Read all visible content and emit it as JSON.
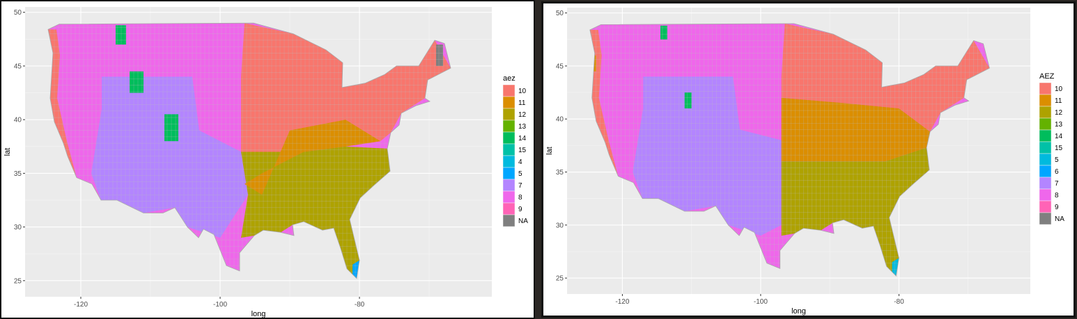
{
  "chart_data": [
    {
      "type": "choropleth-map",
      "xlabel": "long",
      "ylabel": "lat",
      "xlim": [
        -128,
        -61
      ],
      "ylim": [
        23.5,
        50.5
      ],
      "xticks": [
        -120,
        -100,
        -80
      ],
      "yticks": [
        25,
        30,
        35,
        40,
        45,
        50
      ],
      "grid": true,
      "legend_position": "right",
      "legend": {
        "title": "aez",
        "entries": [
          {
            "label": "10",
            "color": "#F8766D"
          },
          {
            "label": "11",
            "color": "#DB8E00"
          },
          {
            "label": "12",
            "color": "#AEA200"
          },
          {
            "label": "13",
            "color": "#64B200"
          },
          {
            "label": "14",
            "color": "#00BD5C"
          },
          {
            "label": "15",
            "color": "#00C1A7"
          },
          {
            "label": "4",
            "color": "#00BADE"
          },
          {
            "label": "5",
            "color": "#00A6FF"
          },
          {
            "label": "7",
            "color": "#B385FF"
          },
          {
            "label": "8",
            "color": "#EF67EB"
          },
          {
            "label": "9",
            "color": "#FF63B6"
          },
          {
            "label": "NA",
            "color": "#7F7F7F"
          }
        ]
      }
    },
    {
      "type": "choropleth-map",
      "xlabel": "long",
      "ylabel": "lat",
      "xlim": [
        -128,
        -61
      ],
      "ylim": [
        23.5,
        50.5
      ],
      "xticks": [
        -120,
        -100,
        -80
      ],
      "yticks": [
        25,
        30,
        35,
        40,
        45,
        50
      ],
      "grid": true,
      "legend_position": "right",
      "legend": {
        "title": "AEZ",
        "entries": [
          {
            "label": "10",
            "color": "#F8766D"
          },
          {
            "label": "11",
            "color": "#DB8E00"
          },
          {
            "label": "12",
            "color": "#AEA200"
          },
          {
            "label": "13",
            "color": "#64B200"
          },
          {
            "label": "14",
            "color": "#00BD5C"
          },
          {
            "label": "15",
            "color": "#00C1A7"
          },
          {
            "label": "5",
            "color": "#00BADE"
          },
          {
            "label": "6",
            "color": "#00A6FF"
          },
          {
            "label": "7",
            "color": "#B385FF"
          },
          {
            "label": "8",
            "color": "#EF67EB"
          },
          {
            "label": "9",
            "color": "#FF63B6"
          },
          {
            "label": "NA",
            "color": "#7F7F7F"
          }
        ]
      }
    }
  ]
}
